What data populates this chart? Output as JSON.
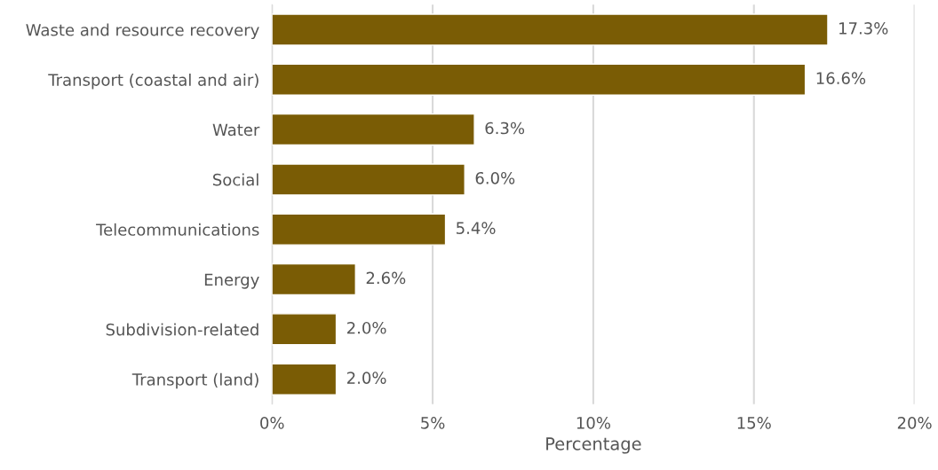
{
  "chart_data": {
    "type": "bar",
    "orientation": "horizontal",
    "xlabel": "Percentage",
    "categories": [
      "Waste and resource recovery",
      "Transport (coastal and air)",
      "Water",
      "Social",
      "Telecommunications",
      "Energy",
      "Subdivision-related",
      "Transport (land)"
    ],
    "values": [
      17.3,
      16.6,
      6.3,
      6.0,
      5.4,
      2.6,
      2.0,
      2.0
    ],
    "value_labels": [
      "17.3%",
      "16.6%",
      "6.3%",
      "6.0%",
      "5.4%",
      "2.6%",
      "2.0%",
      "2.0%"
    ],
    "color": "#7a5c05",
    "xlim": [
      0,
      20
    ],
    "xticks": [
      {
        "value": 0,
        "label": "0%"
      },
      {
        "value": 5,
        "label": "5%"
      },
      {
        "value": 10,
        "label": "10%"
      },
      {
        "value": 15,
        "label": "15%"
      },
      {
        "value": 20,
        "label": "20%"
      }
    ],
    "grid": "x",
    "legend": false
  }
}
